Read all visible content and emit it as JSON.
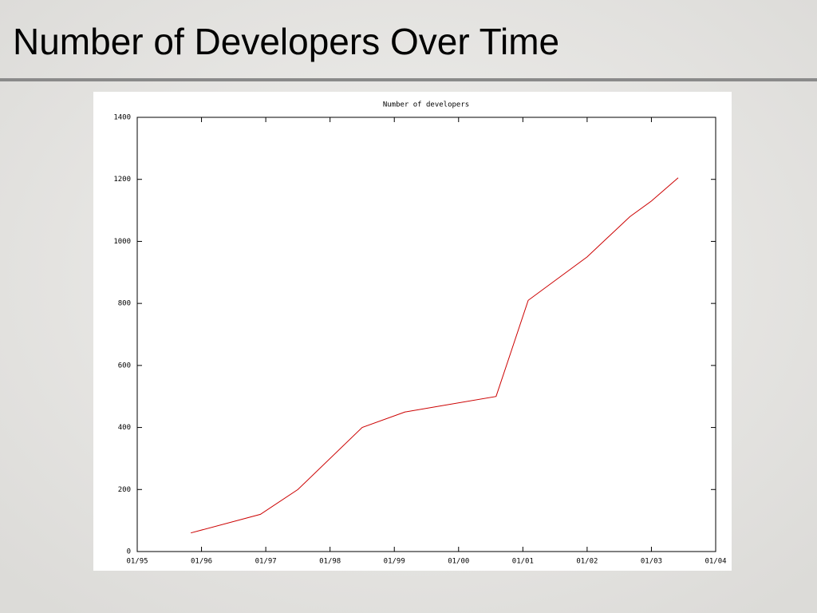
{
  "title": "Number of Developers Over Time",
  "chart_data": {
    "type": "line",
    "title": "Number of developers",
    "x": [
      "11/95",
      "12/96",
      "07/97",
      "07/98",
      "03/99",
      "08/00",
      "02/01",
      "01/02",
      "09/02",
      "01/03",
      "06/03"
    ],
    "values": [
      60,
      120,
      200,
      400,
      450,
      500,
      810,
      950,
      1080,
      1130,
      1205
    ],
    "color": "#cc0000",
    "xlim": [
      "01/95",
      "01/04"
    ],
    "xticks": [
      "01/95",
      "01/96",
      "01/97",
      "01/98",
      "01/99",
      "01/00",
      "01/01",
      "01/02",
      "01/03",
      "01/04"
    ],
    "ylim": [
      0,
      1400
    ],
    "yticks": [
      0,
      200,
      400,
      600,
      800,
      1000,
      1200,
      1400
    ],
    "grid": false
  }
}
